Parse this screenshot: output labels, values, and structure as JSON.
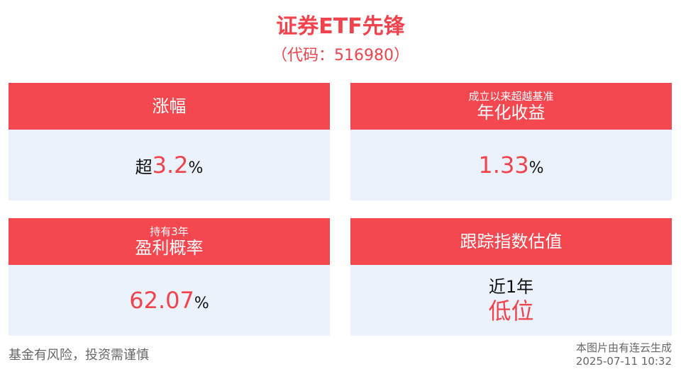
{
  "header": {
    "title": "证券ETF先锋",
    "code": "（代码：516980）"
  },
  "cards": {
    "gain": {
      "title": "涨幅",
      "prefix": "超",
      "value": "3.2",
      "suffix": "%"
    },
    "annualized": {
      "subtitle": "成立以来超越基准",
      "title": "年化收益",
      "value": "1.33",
      "suffix": "%"
    },
    "profit_prob": {
      "subtitle": "持有3年",
      "title": "盈利概率",
      "value": "62.07",
      "suffix": "%"
    },
    "valuation": {
      "title": "跟踪指数估值",
      "line1": "近1年",
      "line2": "低位"
    }
  },
  "footer": {
    "disclaimer": "基金有风险，投资需谨慎",
    "source": "本图片由有连云生成",
    "timestamp": "2025-07-11 10:32"
  },
  "colors": {
    "accent": "#f4474f",
    "body_bg": "#ebf2fb"
  }
}
